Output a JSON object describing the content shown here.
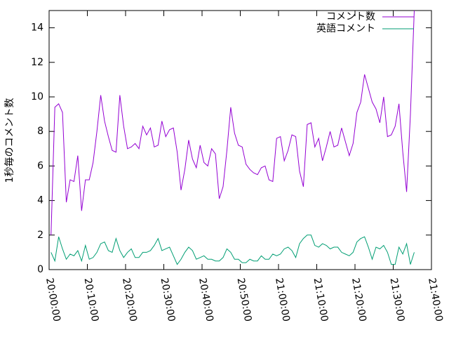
{
  "chart_data": {
    "type": "line",
    "ylabel": "1秒毎のコメント数",
    "x": [
      "20:00:30",
      "20:01:30",
      "20:02:30",
      "20:03:30",
      "20:04:30",
      "20:05:30",
      "20:06:30",
      "20:07:30",
      "20:08:30",
      "20:09:30",
      "20:10:30",
      "20:11:30",
      "20:12:30",
      "20:13:30",
      "20:14:30",
      "20:15:30",
      "20:16:30",
      "20:17:30",
      "20:18:30",
      "20:19:30",
      "20:20:30",
      "20:21:30",
      "20:22:30",
      "20:23:30",
      "20:24:30",
      "20:25:30",
      "20:26:30",
      "20:27:30",
      "20:28:30",
      "20:29:30",
      "20:30:30",
      "20:31:30",
      "20:32:30",
      "20:33:30",
      "20:34:30",
      "20:35:30",
      "20:36:30",
      "20:37:30",
      "20:38:30",
      "20:39:30",
      "20:40:30",
      "20:41:30",
      "20:42:30",
      "20:43:30",
      "20:44:30",
      "20:45:30",
      "20:46:30",
      "20:47:30",
      "20:48:30",
      "20:49:30",
      "20:50:30",
      "20:51:30",
      "20:52:30",
      "20:53:30",
      "20:54:30",
      "20:55:30",
      "20:56:30",
      "20:57:30",
      "20:58:30",
      "20:59:30",
      "21:00:30",
      "21:01:30",
      "21:02:30",
      "21:03:30",
      "21:04:30",
      "21:05:30",
      "21:06:30",
      "21:07:30",
      "21:08:30",
      "21:09:30",
      "21:10:30",
      "21:11:30",
      "21:12:30",
      "21:13:30",
      "21:14:30",
      "21:15:30",
      "21:16:30",
      "21:17:30",
      "21:18:30",
      "21:19:30",
      "21:20:30",
      "21:21:30",
      "21:22:30",
      "21:23:30",
      "21:24:30",
      "21:25:30",
      "21:26:30",
      "21:27:30",
      "21:28:30",
      "21:29:30",
      "21:30:30",
      "21:31:30",
      "21:32:30",
      "21:33:30",
      "21:34:30",
      "21:35:30"
    ],
    "series": [
      {
        "name": "コメント数",
        "color": "#9400d3",
        "values": [
          2,
          9.4,
          9.6,
          9.1,
          3.9,
          5.2,
          5.1,
          6.6,
          3.4,
          5.2,
          5.2,
          6.2,
          8.0,
          10.1,
          8.6,
          7.7,
          6.9,
          6.8,
          10.1,
          8.3,
          7.0,
          7.1,
          7.3,
          7.0,
          8.3,
          7.8,
          8.2,
          7.1,
          7.2,
          8.6,
          7.7,
          8.1,
          8.2,
          6.8,
          4.6,
          5.8,
          7.5,
          6.4,
          5.9,
          7.2,
          6.2,
          6.0,
          7.0,
          6.7,
          4.1,
          4.8,
          6.9,
          9.4,
          7.9,
          7.2,
          7.1,
          6.1,
          5.8,
          5.6,
          5.5,
          5.9,
          6.0,
          5.2,
          5.1,
          7.6,
          7.7,
          6.3,
          6.9,
          7.8,
          7.7,
          5.7,
          4.8,
          8.4,
          8.5,
          7.1,
          7.6,
          6.3,
          7.1,
          8.0,
          7.1,
          7.2,
          8.2,
          7.4,
          6.6,
          7.3,
          9.1,
          9.7,
          11.3,
          10.5,
          9.7,
          9.3,
          8.5,
          10.0,
          7.7,
          7.8,
          8.3,
          9.6,
          6.8,
          4.5,
          9.0,
          15
        ]
      },
      {
        "name": "英語コメント",
        "color": "#009e73",
        "values": [
          1.0,
          0.5,
          1.9,
          1.2,
          0.6,
          0.9,
          0.8,
          1.1,
          0.5,
          1.4,
          0.6,
          0.7,
          1.0,
          1.5,
          1.6,
          1.1,
          1.0,
          1.8,
          1.1,
          0.7,
          1.0,
          1.2,
          0.7,
          0.7,
          1.0,
          1.0,
          1.1,
          1.4,
          1.8,
          1.1,
          1.2,
          1.3,
          0.8,
          0.3,
          0.6,
          1.0,
          1.3,
          1.1,
          0.6,
          0.7,
          0.8,
          0.6,
          0.6,
          0.5,
          0.5,
          0.7,
          1.2,
          1.0,
          0.6,
          0.6,
          0.4,
          0.4,
          0.6,
          0.5,
          0.5,
          0.8,
          0.6,
          0.6,
          0.9,
          0.8,
          0.9,
          1.2,
          1.3,
          1.1,
          0.7,
          1.5,
          1.8,
          2.0,
          2.0,
          1.4,
          1.3,
          1.5,
          1.4,
          1.2,
          1.3,
          1.3,
          1.0,
          0.9,
          0.8,
          1.0,
          1.6,
          1.8,
          1.9,
          1.3,
          0.6,
          1.3,
          1.2,
          1.4,
          1.0,
          0.3,
          0.3,
          1.3,
          0.9,
          1.5,
          0.3,
          1.0
        ]
      }
    ],
    "xlim": [
      "20:00:00",
      "21:40:00"
    ],
    "xticks": [
      "20:00:00",
      "20:10:00",
      "20:20:00",
      "20:30:00",
      "20:40:00",
      "20:50:00",
      "21:00:00",
      "21:10:00",
      "21:20:00",
      "21:30:00",
      "21:40:00"
    ],
    "ylim": [
      0,
      15
    ],
    "yticks": [
      0,
      2,
      4,
      6,
      8,
      10,
      12,
      14
    ],
    "legend": "top-right"
  }
}
